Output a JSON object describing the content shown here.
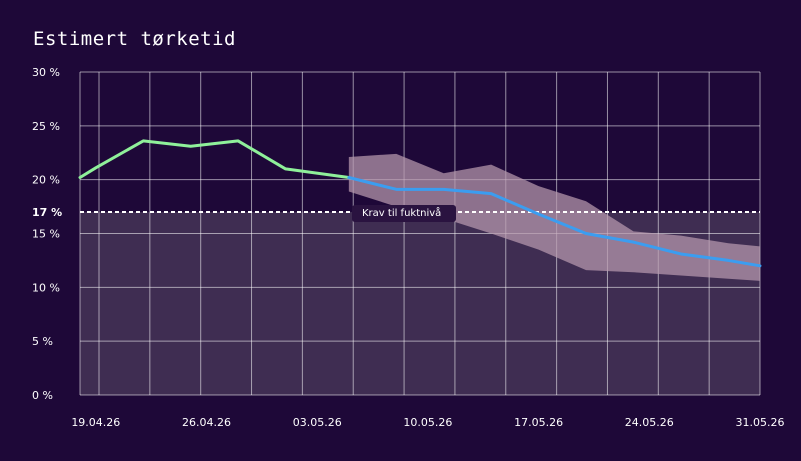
{
  "chart_data": {
    "type": "line",
    "title": "Estimert tørketid",
    "y_unit": "%",
    "ylim": [
      0,
      30
    ],
    "y_ticks": [
      0,
      5,
      10,
      15,
      20,
      25,
      30
    ],
    "y_tick_labels": [
      "0 %",
      "5 %",
      "10 %",
      "15 %",
      "20 %",
      "25 %",
      "30 %"
    ],
    "x_range": [
      "2026-04-18",
      "2026-05-31"
    ],
    "x_ticks": [
      "2026-04-19",
      "2026-04-26",
      "2026-05-03",
      "2026-05-10",
      "2026-05-17",
      "2026-05-24",
      "2026-05-31"
    ],
    "x_tick_labels": [
      "19.04.26",
      "26.04.26",
      "03.05.26",
      "10.05.26",
      "17.05.26",
      "24.05.26",
      "31.05.26"
    ],
    "grid": true,
    "series": [
      {
        "style": "measured",
        "color": "#8ff09a",
        "x": [
          "2026-04-18",
          "2026-04-19",
          "2026-04-22",
          "2026-04-25",
          "2026-04-28",
          "2026-05-01",
          "2026-05-05"
        ],
        "y": [
          20.2,
          21.1,
          23.6,
          23.1,
          23.6,
          21.0,
          20.2
        ]
      },
      {
        "style": "forecast",
        "color": "#3b9df0",
        "x": [
          "2026-05-05",
          "2026-05-08",
          "2026-05-11",
          "2026-05-14",
          "2026-05-17",
          "2026-05-20",
          "2026-05-23",
          "2026-05-26",
          "2026-05-29",
          "2026-05-31"
        ],
        "y": [
          20.2,
          19.1,
          19.1,
          18.7,
          16.8,
          15.0,
          14.2,
          13.1,
          12.5,
          12.0
        ]
      }
    ],
    "forecast_band": {
      "color": "#b89aae",
      "x": [
        "2026-05-05",
        "2026-05-08",
        "2026-05-11",
        "2026-05-14",
        "2026-05-17",
        "2026-05-20",
        "2026-05-23",
        "2026-05-26",
        "2026-05-29",
        "2026-05-31"
      ],
      "upper": [
        22.1,
        22.4,
        20.6,
        21.4,
        19.4,
        18.0,
        15.2,
        14.8,
        14.1,
        13.8
      ],
      "lower": [
        18.9,
        17.5,
        16.4,
        15.0,
        13.5,
        11.6,
        11.4,
        11.1,
        10.8,
        10.6
      ]
    },
    "threshold": {
      "value": 17,
      "label": "17 %",
      "annotation": "Krav til fuktnivå",
      "color": "#ffffff"
    },
    "below_threshold_fill": "#3f2d52"
  }
}
